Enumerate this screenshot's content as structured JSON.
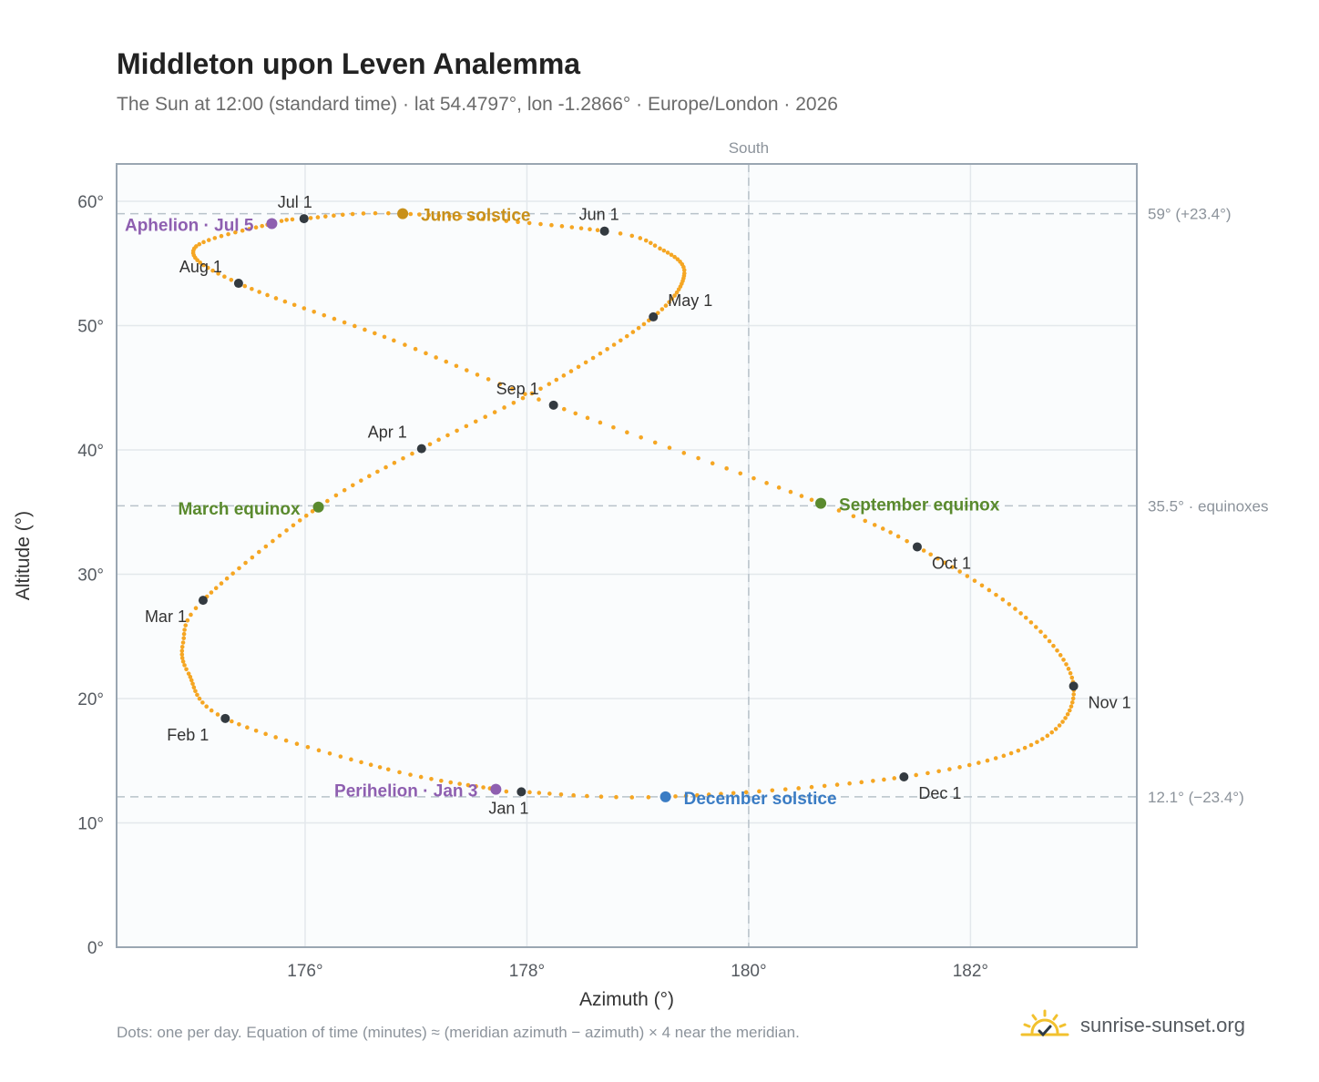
{
  "header": {
    "title": "Middleton upon Leven Analemma",
    "subtitle": "The Sun at 12:00 (standard time) · lat 54.4797°, lon -1.2866° · Europe/London · 2026"
  },
  "footer": {
    "note": "Dots: one per day. Equation of time (minutes) ≈ (meridian azimuth − azimuth) × 4 near the meridian.",
    "brand": "sunrise-sunset.org",
    "brand_icon": "sun-horizon-icon"
  },
  "colors": {
    "path": "#f5a623",
    "month_marker": "#333a40",
    "june_solstice": "#c8901a",
    "december_solstice": "#3a7cc4",
    "equinox": "#5a8a2e",
    "apsis": "#8e5fb0",
    "reference_line": "#b8c2ca",
    "plot_bg": "#fafcfd",
    "grid": "#e3e8ec",
    "frame": "#9aa6b2"
  },
  "chart_data": {
    "type": "scatter",
    "xlabel": "Azimuth (°)",
    "ylabel": "Altitude (°)",
    "xlim": [
      174.3,
      183.5
    ],
    "ylim": [
      0,
      63
    ],
    "xticks": [
      176,
      178,
      180,
      182
    ],
    "xtick_labels": [
      "176°",
      "178°",
      "180°",
      "182°"
    ],
    "yticks": [
      0,
      10,
      20,
      30,
      40,
      50,
      60
    ],
    "ytick_labels": [
      "0°",
      "10°",
      "20°",
      "30°",
      "40°",
      "50°",
      "60°"
    ],
    "grid": true,
    "meridian": {
      "azimuth": 180,
      "label": "South"
    },
    "reference_lines": [
      {
        "altitude": 59.0,
        "label": "59° (+23.4°)"
      },
      {
        "altitude": 35.5,
        "label": "35.5° · equinoxes"
      },
      {
        "altitude": 12.1,
        "label": "12.1° (−23.4°)"
      }
    ],
    "daily_path_keypoints": [
      {
        "day": 1,
        "az": 177.95,
        "alt": 12.5
      },
      {
        "day": 3,
        "az": 177.72,
        "alt": 12.7
      },
      {
        "day": 15,
        "az": 176.75,
        "alt": 14.3
      },
      {
        "day": 32,
        "az": 175.28,
        "alt": 18.4
      },
      {
        "day": 44,
        "az": 174.95,
        "alt": 22.0
      },
      {
        "day": 52,
        "az": 174.9,
        "alt": 24.5
      },
      {
        "day": 60,
        "az": 175.08,
        "alt": 27.9
      },
      {
        "day": 79,
        "az": 176.12,
        "alt": 35.4
      },
      {
        "day": 91,
        "az": 177.05,
        "alt": 40.1
      },
      {
        "day": 105,
        "az": 178.2,
        "alt": 45.3
      },
      {
        "day": 121,
        "az": 179.14,
        "alt": 50.7
      },
      {
        "day": 135,
        "az": 179.42,
        "alt": 54.2
      },
      {
        "day": 145,
        "az": 179.2,
        "alt": 56.2
      },
      {
        "day": 152,
        "az": 178.7,
        "alt": 57.6
      },
      {
        "day": 172,
        "az": 176.88,
        "alt": 59.0
      },
      {
        "day": 182,
        "az": 175.99,
        "alt": 58.6
      },
      {
        "day": 186,
        "az": 175.7,
        "alt": 58.2
      },
      {
        "day": 200,
        "az": 175.0,
        "alt": 56.2
      },
      {
        "day": 213,
        "az": 175.4,
        "alt": 53.4
      },
      {
        "day": 230,
        "az": 176.8,
        "alt": 48.8
      },
      {
        "day": 244,
        "az": 178.24,
        "alt": 43.6
      },
      {
        "day": 265,
        "az": 180.65,
        "alt": 35.7
      },
      {
        "day": 274,
        "az": 181.52,
        "alt": 32.2
      },
      {
        "day": 290,
        "az": 182.5,
        "alt": 26.5
      },
      {
        "day": 305,
        "az": 182.93,
        "alt": 21.0
      },
      {
        "day": 320,
        "az": 182.6,
        "alt": 16.5
      },
      {
        "day": 335,
        "az": 181.4,
        "alt": 13.7
      },
      {
        "day": 355,
        "az": 179.25,
        "alt": 12.1
      },
      {
        "day": 366,
        "az": 177.95,
        "alt": 12.5
      }
    ],
    "month_markers": [
      {
        "label": "Jan 1",
        "az": 177.95,
        "alt": 12.5
      },
      {
        "label": "Feb 1",
        "az": 175.28,
        "alt": 18.4
      },
      {
        "label": "Mar 1",
        "az": 175.08,
        "alt": 27.9
      },
      {
        "label": "Apr 1",
        "az": 177.05,
        "alt": 40.1
      },
      {
        "label": "May 1",
        "az": 179.14,
        "alt": 50.7
      },
      {
        "label": "Jun 1",
        "az": 178.7,
        "alt": 57.6
      },
      {
        "label": "Jul 1",
        "az": 175.99,
        "alt": 58.6
      },
      {
        "label": "Aug 1",
        "az": 175.4,
        "alt": 53.4
      },
      {
        "label": "Sep 1",
        "az": 178.24,
        "alt": 43.6
      },
      {
        "label": "Oct 1",
        "az": 181.52,
        "alt": 32.2
      },
      {
        "label": "Nov 1",
        "az": 182.93,
        "alt": 21.0
      },
      {
        "label": "Dec 1",
        "az": 181.4,
        "alt": 13.7
      }
    ],
    "annotations": [
      {
        "label": "June solstice",
        "az": 176.88,
        "alt": 59.0,
        "color": "#c8901a"
      },
      {
        "label": "December solstice",
        "az": 179.25,
        "alt": 12.1,
        "color": "#3a7cc4"
      },
      {
        "label": "March equinox",
        "az": 176.12,
        "alt": 35.4,
        "color": "#5a8a2e"
      },
      {
        "label": "September equinox",
        "az": 180.65,
        "alt": 35.7,
        "color": "#5a8a2e"
      },
      {
        "label": "Aphelion · Jul 5",
        "az": 175.7,
        "alt": 58.2,
        "color": "#8e5fb0"
      },
      {
        "label": "Perihelion · Jan 3",
        "az": 177.72,
        "alt": 12.7,
        "color": "#8e5fb0"
      }
    ]
  }
}
